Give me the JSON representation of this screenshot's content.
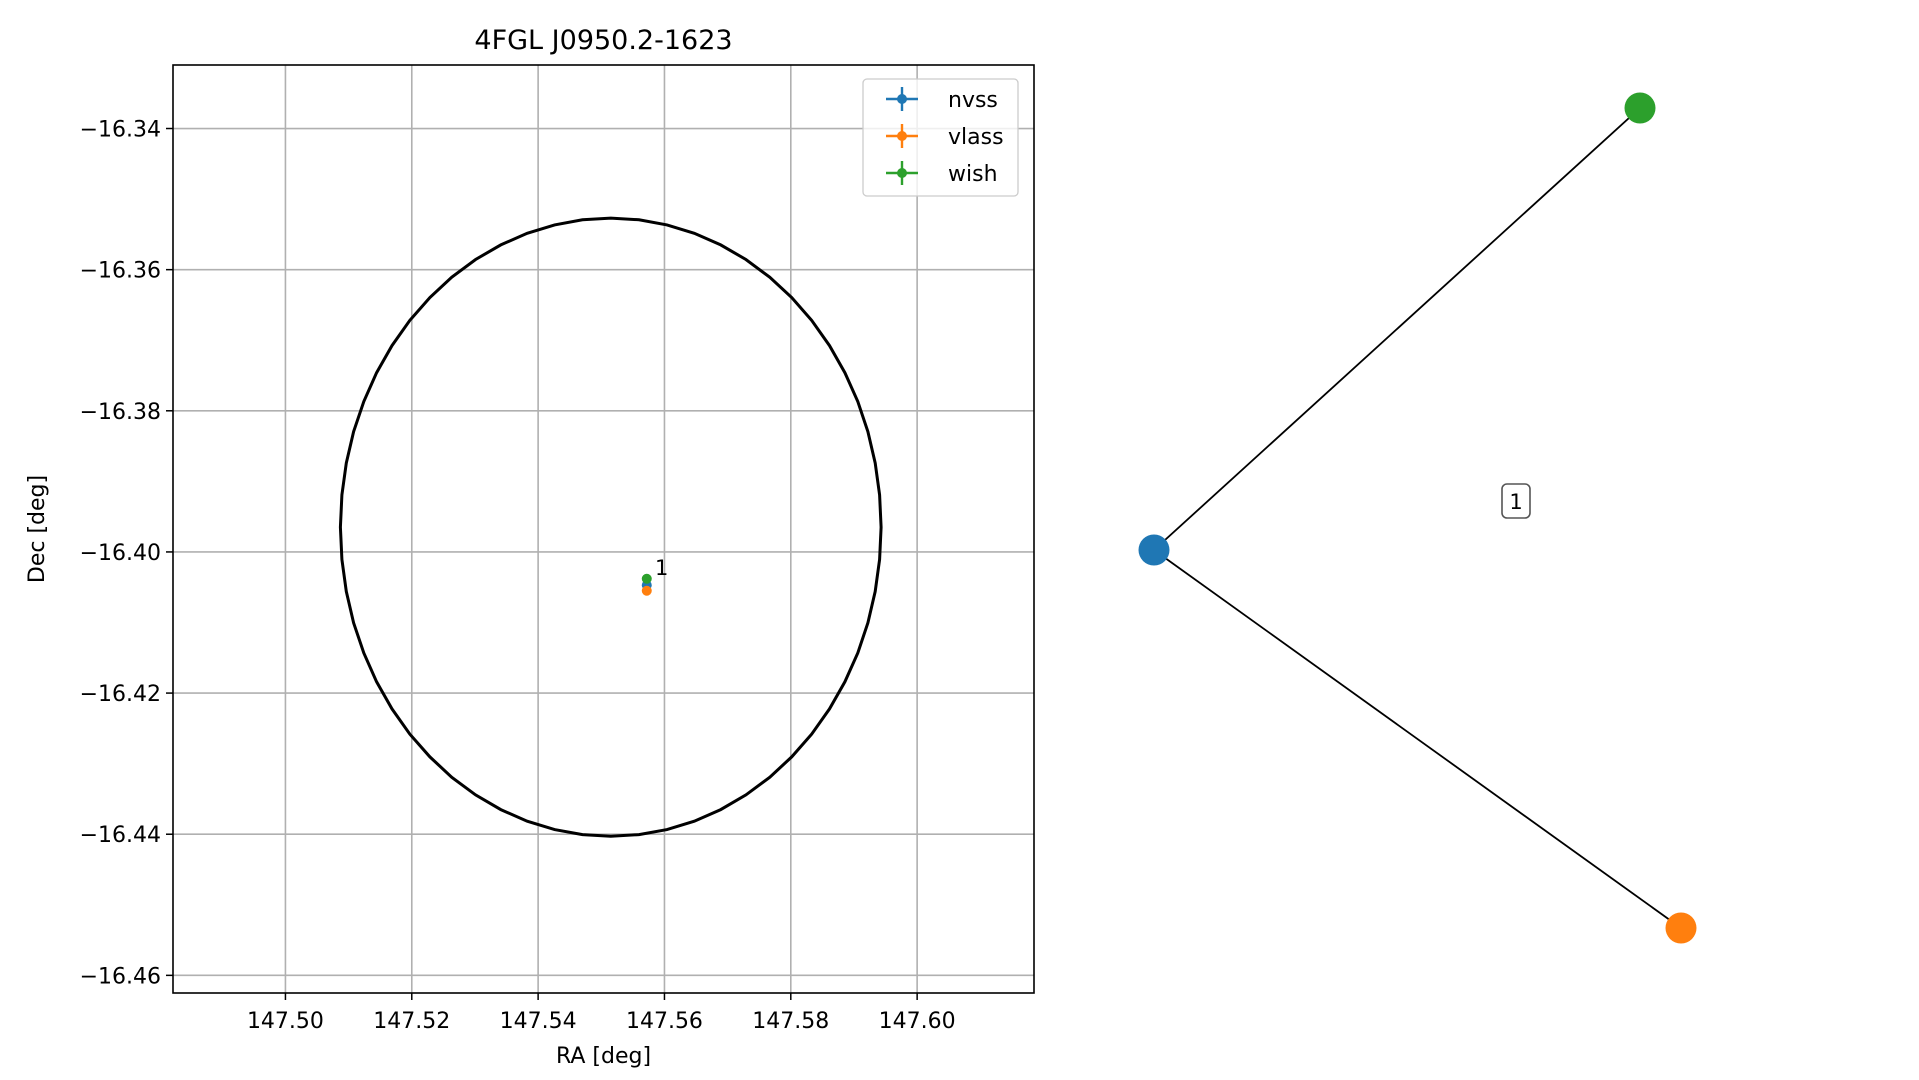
{
  "chart_data": [
    {
      "type": "scatter",
      "title": "4FGL J0950.2-1623",
      "xlabel": "RA [deg]",
      "ylabel": "Dec [deg]",
      "xlim": [
        147.4822,
        147.6185
      ],
      "ylim": [
        -16.4625,
        -16.331
      ],
      "x_ticks": [
        147.5,
        147.52,
        147.54,
        147.56,
        147.58,
        147.6
      ],
      "x_tick_labels": [
        "147.50",
        "147.52",
        "147.54",
        "147.56",
        "147.58",
        "147.60"
      ],
      "y_ticks": [
        -16.34,
        -16.36,
        -16.38,
        -16.4,
        -16.42,
        -16.44,
        -16.46
      ],
      "y_tick_labels": [
        "−16.34",
        "−16.36",
        "−16.38",
        "−16.40",
        "−16.42",
        "−16.44",
        "−16.46"
      ],
      "grid": true,
      "legend_position": "top-right",
      "series": [
        {
          "name": "nvss",
          "color": "#1f77b4",
          "x": [
            147.5572
          ],
          "y": [
            -16.4047
          ]
        },
        {
          "name": "vlass",
          "color": "#ff7f0e",
          "x": [
            147.5572
          ],
          "y": [
            -16.4055
          ]
        },
        {
          "name": "wish",
          "color": "#2ca02c",
          "x": [
            147.5572
          ],
          "y": [
            -16.4038
          ]
        }
      ],
      "annotations": [
        {
          "text": "1",
          "x": 147.5585,
          "y": -16.4033
        }
      ],
      "error_ellipse": {
        "center_ra": 147.5515,
        "center_dec": -16.3965,
        "semi_ra": 0.0428,
        "semi_dec": 0.0438,
        "color": "#000000"
      }
    },
    {
      "type": "network",
      "nodes": [
        {
          "id": "nvss",
          "color": "#1f77b4"
        },
        {
          "id": "wish",
          "color": "#2ca02c"
        },
        {
          "id": "vlass",
          "color": "#ff7f0e"
        }
      ],
      "edges": [
        [
          "nvss",
          "wish"
        ],
        [
          "nvss",
          "vlass"
        ]
      ],
      "label": "1"
    }
  ]
}
